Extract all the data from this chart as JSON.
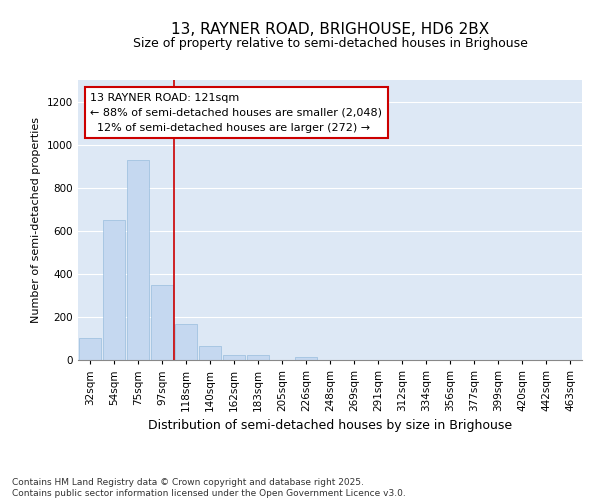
{
  "title1": "13, RAYNER ROAD, BRIGHOUSE, HD6 2BX",
  "title2": "Size of property relative to semi-detached houses in Brighouse",
  "xlabel": "Distribution of semi-detached houses by size in Brighouse",
  "ylabel": "Number of semi-detached properties",
  "categories": [
    "32sqm",
    "54sqm",
    "75sqm",
    "97sqm",
    "118sqm",
    "140sqm",
    "162sqm",
    "183sqm",
    "205sqm",
    "226sqm",
    "248sqm",
    "269sqm",
    "291sqm",
    "312sqm",
    "334sqm",
    "356sqm",
    "377sqm",
    "399sqm",
    "420sqm",
    "442sqm",
    "463sqm"
  ],
  "values": [
    100,
    650,
    930,
    350,
    165,
    65,
    25,
    25,
    0,
    15,
    0,
    0,
    0,
    0,
    0,
    0,
    0,
    0,
    0,
    0,
    0
  ],
  "bar_color": "#c5d8f0",
  "bar_edge_color": "#8ab4d8",
  "vline_position": 3.5,
  "vline_color": "#cc0000",
  "annotation_text": "13 RAYNER ROAD: 121sqm\n← 88% of semi-detached houses are smaller (2,048)\n  12% of semi-detached houses are larger (272) →",
  "annotation_box_edgecolor": "#cc0000",
  "ylim": [
    0,
    1300
  ],
  "yticks": [
    0,
    200,
    400,
    600,
    800,
    1000,
    1200
  ],
  "background_color": "#dde8f5",
  "footer_text": "Contains HM Land Registry data © Crown copyright and database right 2025.\nContains public sector information licensed under the Open Government Licence v3.0.",
  "title1_fontsize": 11,
  "title2_fontsize": 9,
  "ylabel_fontsize": 8,
  "xlabel_fontsize": 9,
  "tick_fontsize": 7.5,
  "annotation_fontsize": 8,
  "footer_fontsize": 6.5
}
